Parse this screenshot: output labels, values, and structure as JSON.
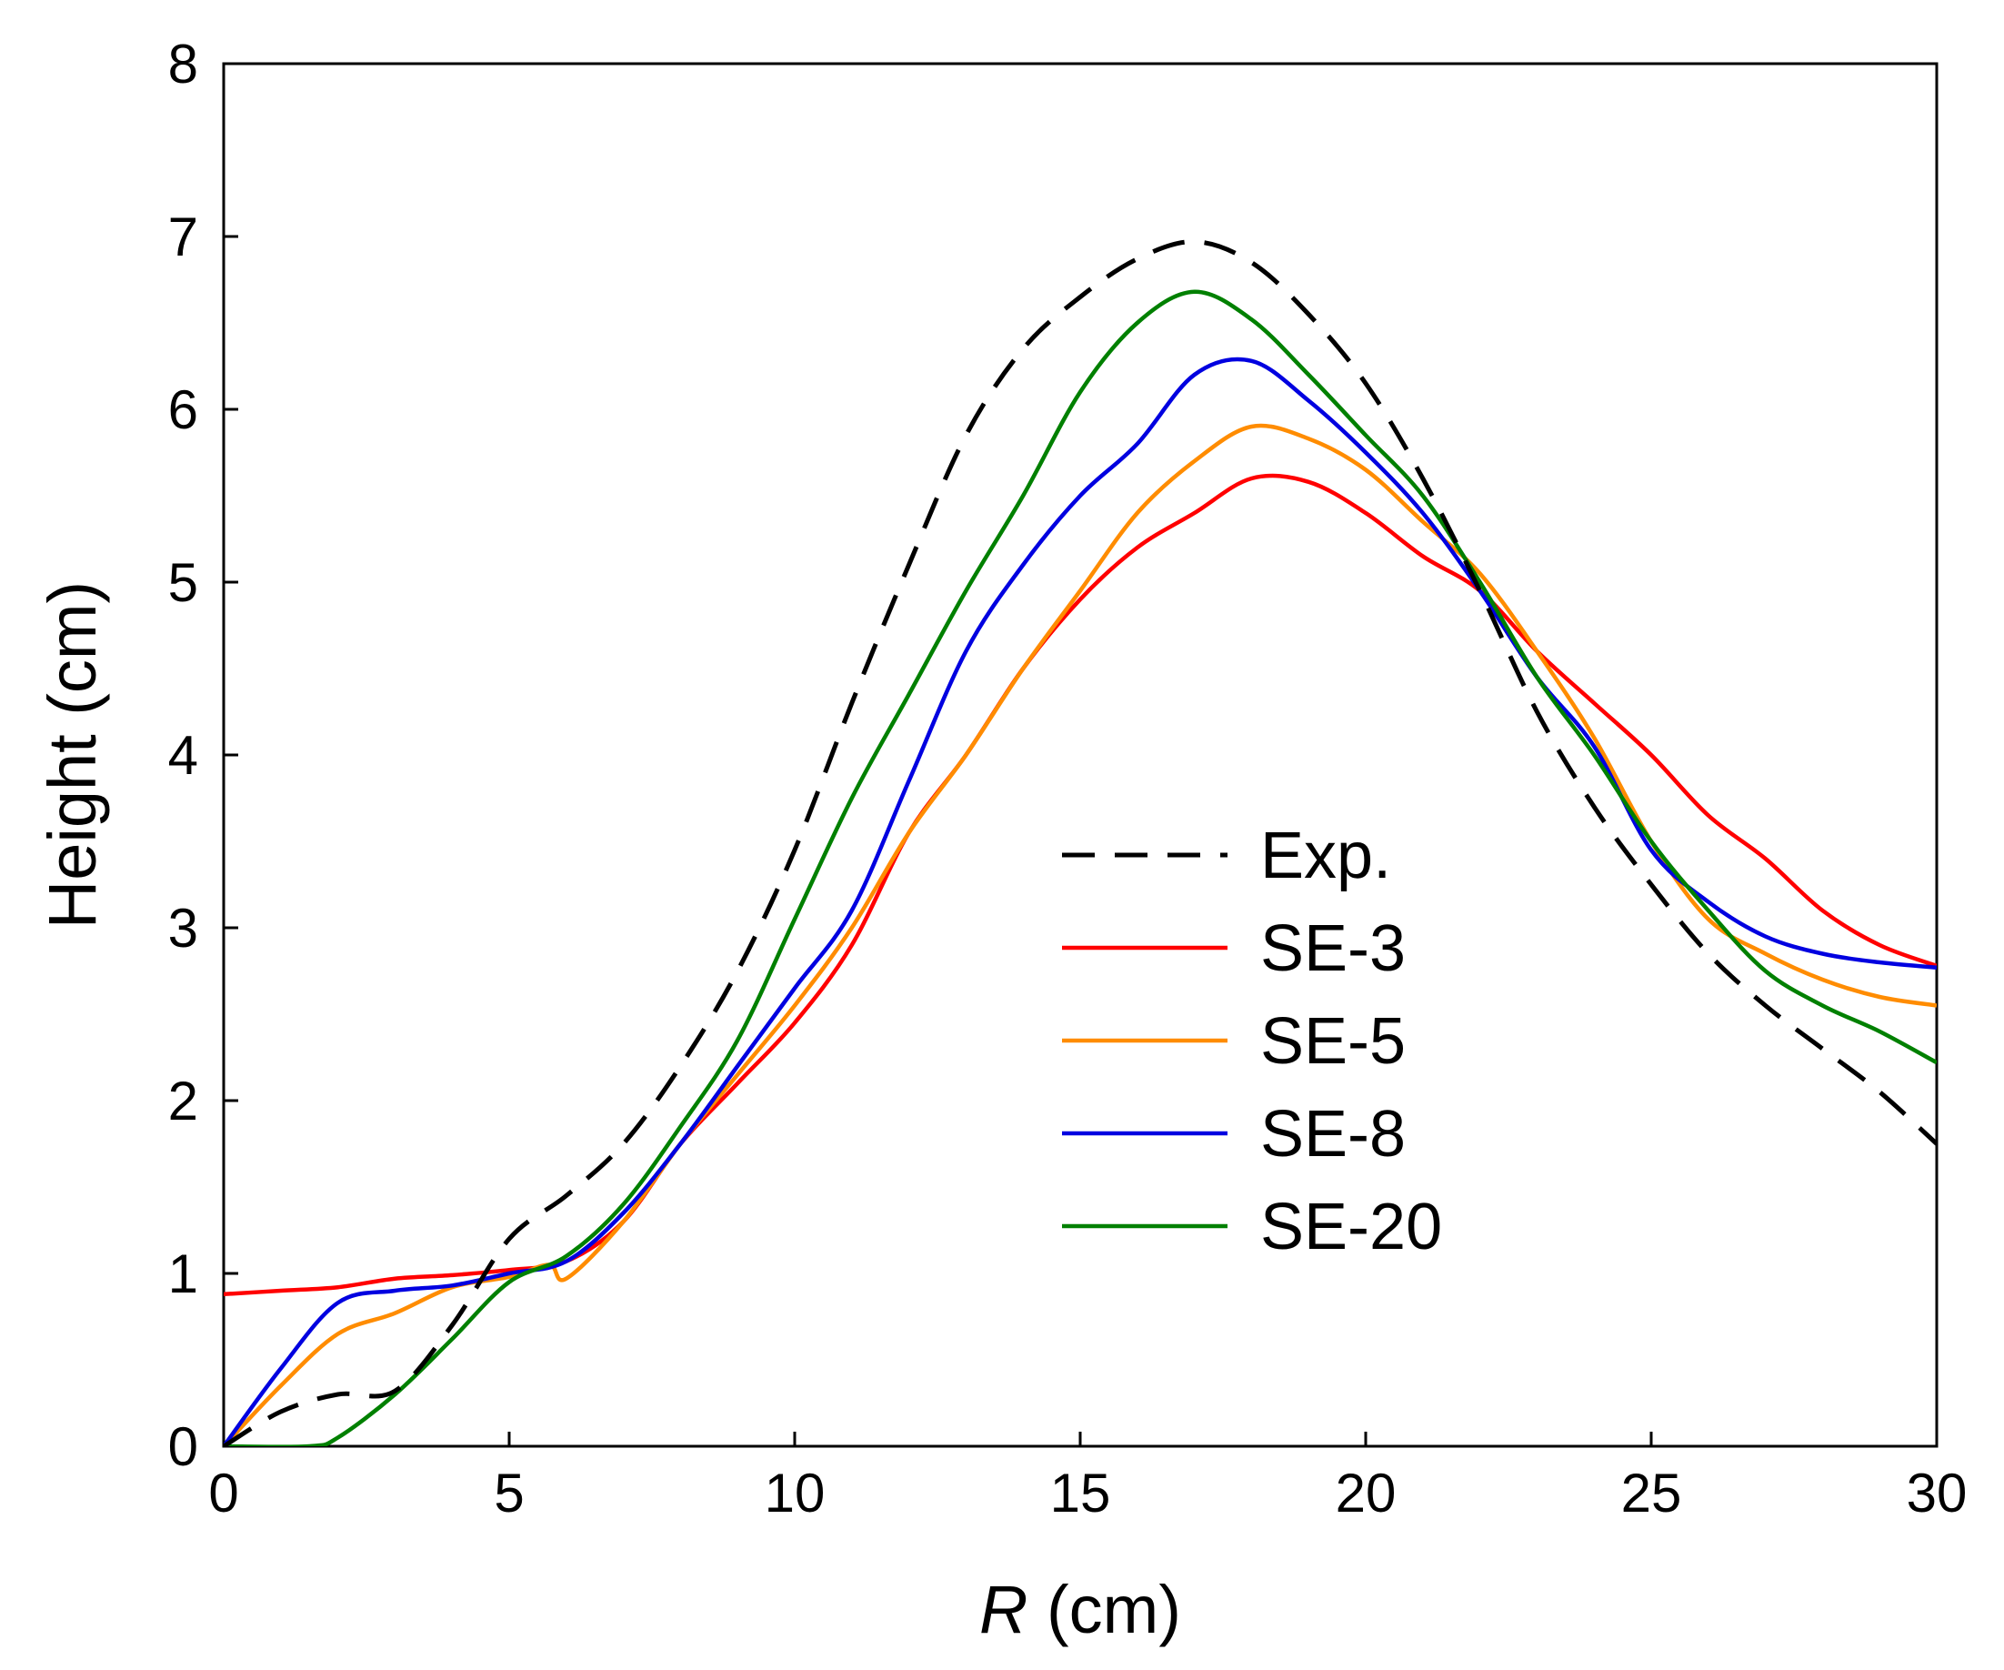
{
  "chart_data": {
    "type": "line",
    "title": "",
    "xlabel": {
      "var": "R",
      "unit": " (cm)"
    },
    "ylabel": "Height (cm)",
    "xlim": [
      0,
      30
    ],
    "ylim": [
      0,
      8
    ],
    "xticks": [
      0,
      5,
      10,
      15,
      20,
      25,
      30
    ],
    "yticks": [
      0,
      1,
      2,
      3,
      4,
      5,
      6,
      7,
      8
    ],
    "grid": false,
    "legend_position": "center-right",
    "series": [
      {
        "name": "Exp.",
        "color": "#000000",
        "dash": "dashed",
        "points": [
          [
            0,
            0
          ],
          [
            1,
            0.2
          ],
          [
            2,
            0.3
          ],
          [
            3,
            0.32
          ],
          [
            4,
            0.7
          ],
          [
            5,
            1.2
          ],
          [
            6,
            1.45
          ],
          [
            7,
            1.75
          ],
          [
            8,
            2.2
          ],
          [
            9,
            2.75
          ],
          [
            10,
            3.45
          ],
          [
            11,
            4.3
          ],
          [
            12,
            5.1
          ],
          [
            13,
            5.85
          ],
          [
            14,
            6.35
          ],
          [
            15,
            6.65
          ],
          [
            16,
            6.87
          ],
          [
            17,
            6.97
          ],
          [
            18,
            6.85
          ],
          [
            19,
            6.55
          ],
          [
            20,
            6.15
          ],
          [
            21,
            5.6
          ],
          [
            22,
            4.95
          ],
          [
            23,
            4.25
          ],
          [
            24,
            3.7
          ],
          [
            25,
            3.25
          ],
          [
            26,
            2.85
          ],
          [
            27,
            2.55
          ],
          [
            28,
            2.3
          ],
          [
            29,
            2.05
          ],
          [
            30,
            1.75
          ]
        ]
      },
      {
        "name": "SE-3",
        "color": "#ff0000",
        "dash": "solid",
        "points": [
          [
            0,
            0.88
          ],
          [
            1,
            0.9
          ],
          [
            2,
            0.92
          ],
          [
            3,
            0.97
          ],
          [
            4,
            0.99
          ],
          [
            5,
            1.02
          ],
          [
            6,
            1.07
          ],
          [
            7,
            1.3
          ],
          [
            8,
            1.75
          ],
          [
            9,
            2.1
          ],
          [
            10,
            2.45
          ],
          [
            11,
            2.9
          ],
          [
            12,
            3.55
          ],
          [
            13,
            4.0
          ],
          [
            14,
            4.5
          ],
          [
            15,
            4.9
          ],
          [
            16,
            5.2
          ],
          [
            17,
            5.4
          ],
          [
            18,
            5.6
          ],
          [
            19,
            5.58
          ],
          [
            20,
            5.4
          ],
          [
            21,
            5.15
          ],
          [
            22,
            4.95
          ],
          [
            23,
            4.6
          ],
          [
            24,
            4.3
          ],
          [
            25,
            4.0
          ],
          [
            26,
            3.65
          ],
          [
            27,
            3.4
          ],
          [
            28,
            3.1
          ],
          [
            29,
            2.9
          ],
          [
            30,
            2.78
          ]
        ]
      },
      {
        "name": "SE-5",
        "color": "#ff8c00",
        "dash": "solid",
        "points": [
          [
            0,
            0
          ],
          [
            1,
            0.35
          ],
          [
            2,
            0.65
          ],
          [
            3,
            0.77
          ],
          [
            4,
            0.92
          ],
          [
            5,
            0.98
          ],
          [
            5.7,
            1.05
          ],
          [
            6,
            0.97
          ],
          [
            7,
            1.3
          ],
          [
            8,
            1.75
          ],
          [
            9,
            2.15
          ],
          [
            10,
            2.55
          ],
          [
            11,
            3.0
          ],
          [
            12,
            3.55
          ],
          [
            13,
            4.0
          ],
          [
            14,
            4.5
          ],
          [
            15,
            4.95
          ],
          [
            16,
            5.4
          ],
          [
            17,
            5.7
          ],
          [
            18,
            5.9
          ],
          [
            19,
            5.83
          ],
          [
            20,
            5.65
          ],
          [
            21,
            5.35
          ],
          [
            22,
            5.05
          ],
          [
            23,
            4.6
          ],
          [
            24,
            4.1
          ],
          [
            25,
            3.5
          ],
          [
            26,
            3.05
          ],
          [
            27,
            2.85
          ],
          [
            28,
            2.7
          ],
          [
            29,
            2.6
          ],
          [
            30,
            2.55
          ]
        ]
      },
      {
        "name": "SE-8",
        "color": "#0000e0",
        "dash": "solid",
        "points": [
          [
            0,
            0
          ],
          [
            1,
            0.45
          ],
          [
            2,
            0.83
          ],
          [
            3,
            0.9
          ],
          [
            4,
            0.93
          ],
          [
            5,
            1.0
          ],
          [
            6,
            1.07
          ],
          [
            7,
            1.35
          ],
          [
            8,
            1.75
          ],
          [
            9,
            2.2
          ],
          [
            10,
            2.65
          ],
          [
            11,
            3.1
          ],
          [
            12,
            3.85
          ],
          [
            13,
            4.6
          ],
          [
            14,
            5.1
          ],
          [
            15,
            5.5
          ],
          [
            16,
            5.8
          ],
          [
            17,
            6.2
          ],
          [
            18,
            6.28
          ],
          [
            19,
            6.05
          ],
          [
            20,
            5.75
          ],
          [
            21,
            5.4
          ],
          [
            22,
            4.95
          ],
          [
            23,
            4.45
          ],
          [
            24,
            4.05
          ],
          [
            25,
            3.45
          ],
          [
            26,
            3.15
          ],
          [
            27,
            2.95
          ],
          [
            28,
            2.85
          ],
          [
            29,
            2.8
          ],
          [
            30,
            2.77
          ]
        ]
      },
      {
        "name": "SE-20",
        "color": "#008000",
        "dash": "solid",
        "points": [
          [
            0,
            0
          ],
          [
            1.5,
            0
          ],
          [
            2,
            0.05
          ],
          [
            3,
            0.3
          ],
          [
            4,
            0.62
          ],
          [
            5,
            0.95
          ],
          [
            6,
            1.1
          ],
          [
            7,
            1.4
          ],
          [
            8,
            1.85
          ],
          [
            9,
            2.35
          ],
          [
            10,
            3.05
          ],
          [
            11,
            3.75
          ],
          [
            12,
            4.35
          ],
          [
            13,
            4.95
          ],
          [
            14,
            5.5
          ],
          [
            15,
            6.1
          ],
          [
            16,
            6.5
          ],
          [
            17,
            6.68
          ],
          [
            18,
            6.52
          ],
          [
            19,
            6.2
          ],
          [
            20,
            5.85
          ],
          [
            21,
            5.5
          ],
          [
            22,
            5.0
          ],
          [
            23,
            4.45
          ],
          [
            24,
            4.0
          ],
          [
            25,
            3.5
          ],
          [
            26,
            3.1
          ],
          [
            27,
            2.75
          ],
          [
            28,
            2.55
          ],
          [
            29,
            2.4
          ],
          [
            30,
            2.22
          ]
        ]
      }
    ]
  }
}
